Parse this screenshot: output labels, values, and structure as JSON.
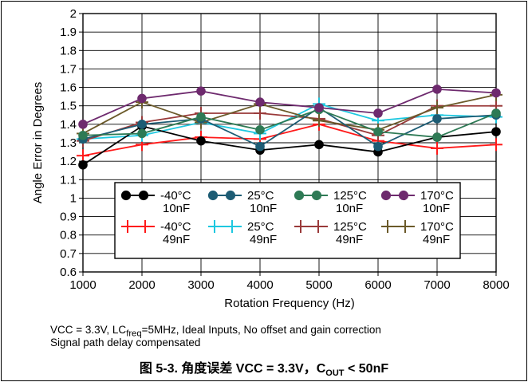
{
  "chart_data": {
    "type": "line",
    "xlabel": "Rotation Frequency (Hz)",
    "ylabel": "Angle Error in Degrees",
    "x": [
      1000,
      2000,
      3000,
      4000,
      5000,
      6000,
      7000,
      8000
    ],
    "xlim": [
      1000,
      8000
    ],
    "ylim": [
      0.6,
      2.0
    ],
    "xticks": [
      "1000",
      "2000",
      "3000",
      "4000",
      "5000",
      "6000",
      "7000",
      "8000"
    ],
    "yticks": [
      "0.6",
      "0.7",
      "0.8",
      "0.9",
      "1",
      "1.1",
      "1.2",
      "1.3",
      "1.4",
      "1.5",
      "1.6",
      "1.7",
      "1.8",
      "1.9",
      "2"
    ],
    "grid": true,
    "legend_position": "lower-center inside plot",
    "series": [
      {
        "name": "-40°C 10nF",
        "line1": "-40°C",
        "line2": "10nF",
        "color": "#000000",
        "marker": "circle",
        "values": [
          1.18,
          1.39,
          1.31,
          1.26,
          1.29,
          1.25,
          1.33,
          1.36
        ]
      },
      {
        "name": "25°C 10nF",
        "line1": "25°C",
        "line2": "10nF",
        "color": "#1d5c74",
        "marker": "circle",
        "values": [
          1.32,
          1.4,
          1.43,
          1.28,
          1.49,
          1.28,
          1.43,
          1.45
        ]
      },
      {
        "name": "125°C 10nF",
        "line1": "125°C",
        "line2": "10nF",
        "color": "#2e7a55",
        "marker": "circle",
        "values": [
          1.34,
          1.35,
          1.44,
          1.37,
          1.48,
          1.36,
          1.33,
          1.46
        ]
      },
      {
        "name": "170°C 10nF",
        "line1": "170°C",
        "line2": "10nF",
        "color": "#6e2a6e",
        "marker": "circle",
        "values": [
          1.4,
          1.54,
          1.58,
          1.52,
          1.49,
          1.46,
          1.59,
          1.57
        ]
      },
      {
        "name": "-40°C 49nF",
        "line1": "-40°C",
        "line2": "49nF",
        "color": "#ff1a1a",
        "marker": "plus",
        "values": [
          1.23,
          1.29,
          1.33,
          1.32,
          1.4,
          1.31,
          1.27,
          1.29
        ]
      },
      {
        "name": "25°C 49nF",
        "line1": "25°C",
        "line2": "49nF",
        "color": "#1ec8e0",
        "marker": "plus",
        "values": [
          1.32,
          1.34,
          1.41,
          1.35,
          1.51,
          1.42,
          1.45,
          1.44
        ]
      },
      {
        "name": "125°C 49nF",
        "line1": "125°C",
        "line2": "49nF",
        "color": "#9a3a3a",
        "marker": "plus",
        "values": [
          1.31,
          1.41,
          1.46,
          1.46,
          1.43,
          1.34,
          1.5,
          1.5
        ]
      },
      {
        "name": "170°C 49nF",
        "line1": "170°C",
        "line2": "49nF",
        "color": "#6b5a2a",
        "marker": "plus",
        "values": [
          1.35,
          1.52,
          1.41,
          1.51,
          1.42,
          1.37,
          1.49,
          1.56
        ]
      }
    ]
  },
  "notes": {
    "line1_a": "VCC = 3.3V, LC",
    "line1_sub": "freq",
    "line1_b": "=5MHz, Ideal Inputs, No offset and gain correction",
    "line2": "Signal path delay compensated"
  },
  "caption": {
    "prefix": "图 5-3. 角度误差 VCC = 3.3V，C",
    "sub": "OUT",
    "suffix": " < 50nF"
  }
}
